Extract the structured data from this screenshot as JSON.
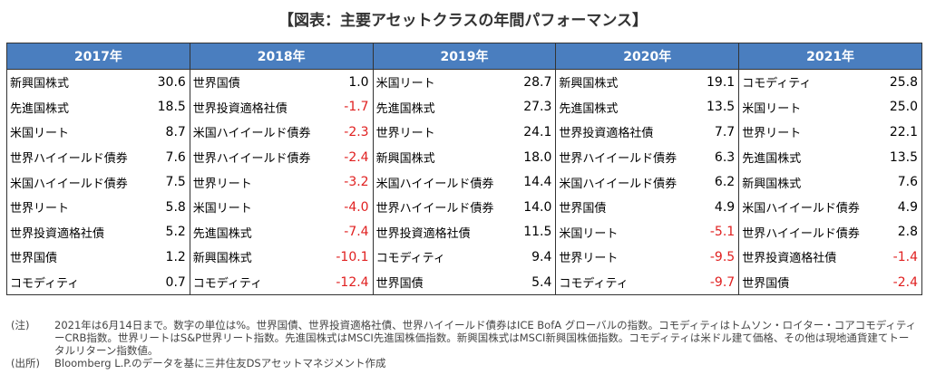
{
  "header": {
    "title": "【図表：主要アセットクラスの年間パフォーマンス】"
  },
  "table": {
    "columns": [
      {
        "year": "2017年",
        "rows": [
          [
            "新興国株式",
            "30.6"
          ],
          [
            "先進国株式",
            "18.5"
          ],
          [
            "米国リート",
            "8.7"
          ],
          [
            "世界ハイイールド債券",
            "7.6"
          ],
          [
            "米国ハイイールド債券",
            "7.5"
          ],
          [
            "世界リート",
            "5.8"
          ],
          [
            "世界投資適格社債",
            "5.2"
          ],
          [
            "世界国債",
            "1.2"
          ],
          [
            "コモディティ",
            "0.7"
          ]
        ]
      },
      {
        "year": "2018年",
        "rows": [
          [
            "世界国債",
            "1.0"
          ],
          [
            "世界投資適格社債",
            "-1.7"
          ],
          [
            "米国ハイイールド債券",
            "-2.3"
          ],
          [
            "世界ハイイールド債券",
            "-2.4"
          ],
          [
            "世界リート",
            "-3.2"
          ],
          [
            "米国リート",
            "-4.0"
          ],
          [
            "先進国株式",
            "-7.4"
          ],
          [
            "新興国株式",
            "-10.1"
          ],
          [
            "コモディティ",
            "-12.4"
          ]
        ]
      },
      {
        "year": "2019年",
        "rows": [
          [
            "米国リート",
            "28.7"
          ],
          [
            "先進国株式",
            "27.3"
          ],
          [
            "世界リート",
            "24.1"
          ],
          [
            "新興国株式",
            "18.0"
          ],
          [
            "米国ハイイールド債券",
            "14.4"
          ],
          [
            "世界ハイイールド債券",
            "14.0"
          ],
          [
            "世界投資適格社債",
            "11.5"
          ],
          [
            "コモディティ",
            "9.4"
          ],
          [
            "世界国債",
            "5.4"
          ]
        ]
      },
      {
        "year": "2020年",
        "rows": [
          [
            "新興国株式",
            "19.1"
          ],
          [
            "先進国株式",
            "13.5"
          ],
          [
            "世界投資適格社債",
            "7.7"
          ],
          [
            "世界ハイイールド債券",
            "6.3"
          ],
          [
            "米国ハイイールド債券",
            "6.2"
          ],
          [
            "世界国債",
            "4.9"
          ],
          [
            "米国リート",
            "-5.1"
          ],
          [
            "世界リート",
            "-9.5"
          ],
          [
            "コモディティ",
            "-9.7"
          ]
        ]
      },
      {
        "year": "2021年",
        "rows": [
          [
            "コモディティ",
            "25.8"
          ],
          [
            "米国リート",
            "25.0"
          ],
          [
            "世界リート",
            "22.1"
          ],
          [
            "先進国株式",
            "13.5"
          ],
          [
            "新興国株式",
            "7.6"
          ],
          [
            "米国ハイイールド債券",
            "4.9"
          ],
          [
            "世界ハイイールド債券",
            "2.8"
          ],
          [
            "世界投資適格社債",
            "-1.4"
          ],
          [
            "世界国債",
            "-2.4"
          ]
        ]
      }
    ]
  },
  "notes": [
    {
      "label": "(注)",
      "text": "2021年は6月14日まで。数字の単位は%。世界国債、世界投資適格社債、世界ハイイールド債券はICE BofA グローバルの指数。コモディティはトムソン・ロイター・コアコモディティーCRB指数。世界リートはS&P世界リート指数。先進国株式はMSCI先進国株価指数。新興国株式はMSCI新興国株価指数。コモディティは米ドル建て価格、その他は現地通貨建てトータルリターン指数値。"
    },
    {
      "label": "(出所)",
      "text": "Bloomberg L.P.のデータを基に三井住友DSアセットマネジメント作成"
    }
  ]
}
